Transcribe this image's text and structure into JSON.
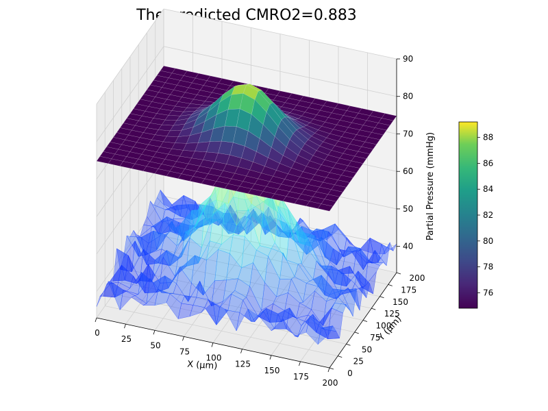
{
  "chart_data": {
    "type": "surface3d",
    "title": "The predicted CMRO2=0.883",
    "xlabel": "X (µm)",
    "ylabel": "Y (µm)",
    "zlabel": "Partial Pressure (mmHg)",
    "xlim": [
      0,
      200
    ],
    "ylim": [
      0,
      200
    ],
    "zlim": [
      33,
      90
    ],
    "x_ticks": [
      "0",
      "25",
      "50",
      "75",
      "100",
      "125",
      "150",
      "175",
      "200"
    ],
    "y_ticks": [
      "0",
      "25",
      "50",
      "75",
      "100",
      "125",
      "150",
      "175",
      "200"
    ],
    "z_ticks": [
      "40",
      "50",
      "60",
      "70",
      "80",
      "90"
    ],
    "colorbar": {
      "colormap": "viridis",
      "range": [
        74.8,
        89.2
      ],
      "ticks": [
        "76",
        "78",
        "80",
        "82",
        "84",
        "86",
        "88"
      ]
    },
    "series": [
      {
        "name": "",
        "kind": "predicted surface",
        "colormap": "viridis",
        "base_z": 74.8,
        "peak_z": 89.2,
        "peak_xy": [
          100,
          100
        ],
        "spread_um": 25
      },
      {
        "name": "",
        "kind": "measured surface",
        "colormap": "jet",
        "alpha": 0.35,
        "base_z": 40,
        "peak_z": 70,
        "peak_xy": [
          100,
          100
        ],
        "spread_um": 30,
        "noise_mmHg": 4
      }
    ],
    "grid": true,
    "colors": {
      "pane": "#f2f2f2",
      "pane_side": "#ebebeb",
      "grid": "#d0d0d0",
      "axis": "#000000"
    }
  }
}
